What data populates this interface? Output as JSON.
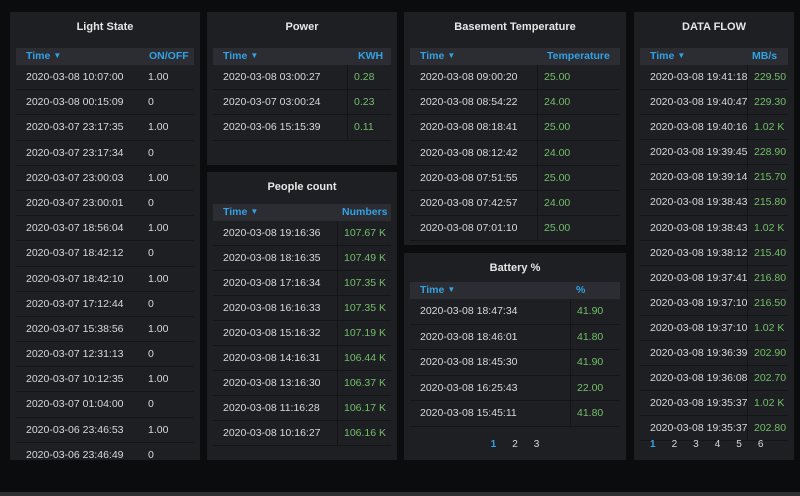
{
  "panels": {
    "light": {
      "title": "Light State",
      "col_time": "Time",
      "col_value": "ON/OFF",
      "rows": [
        {
          "time": "2020-03-08 10:07:00",
          "value": "1.00"
        },
        {
          "time": "2020-03-08 00:15:09",
          "value": "0"
        },
        {
          "time": "2020-03-07 23:17:35",
          "value": "1.00"
        },
        {
          "time": "2020-03-07 23:17:34",
          "value": "0"
        },
        {
          "time": "2020-03-07 23:00:03",
          "value": "1.00"
        },
        {
          "time": "2020-03-07 23:00:01",
          "value": "0"
        },
        {
          "time": "2020-03-07 18:56:04",
          "value": "1.00"
        },
        {
          "time": "2020-03-07 18:42:12",
          "value": "0"
        },
        {
          "time": "2020-03-07 18:42:10",
          "value": "1.00"
        },
        {
          "time": "2020-03-07 17:12:44",
          "value": "0"
        },
        {
          "time": "2020-03-07 15:38:56",
          "value": "1.00"
        },
        {
          "time": "2020-03-07 12:31:13",
          "value": "0"
        },
        {
          "time": "2020-03-07 10:12:35",
          "value": "1.00"
        },
        {
          "time": "2020-03-07 01:04:00",
          "value": "0"
        },
        {
          "time": "2020-03-06 23:46:53",
          "value": "1.00"
        },
        {
          "time": "2020-03-06 23:46:49",
          "value": "0"
        }
      ]
    },
    "power": {
      "title": "Power",
      "col_time": "Time",
      "col_value": "KWH",
      "rows": [
        {
          "time": "2020-03-08 03:00:27",
          "value": "0.28"
        },
        {
          "time": "2020-03-07 03:00:24",
          "value": "0.23"
        },
        {
          "time": "2020-03-06 15:15:39",
          "value": "0.11"
        }
      ]
    },
    "people": {
      "title": "People count",
      "col_time": "Time",
      "col_value": "Numbers",
      "rows": [
        {
          "time": "2020-03-08 19:16:36",
          "value": "107.67 K"
        },
        {
          "time": "2020-03-08 18:16:35",
          "value": "107.49 K"
        },
        {
          "time": "2020-03-08 17:16:34",
          "value": "107.35 K"
        },
        {
          "time": "2020-03-08 16:16:33",
          "value": "107.35 K"
        },
        {
          "time": "2020-03-08 15:16:32",
          "value": "107.19 K"
        },
        {
          "time": "2020-03-08 14:16:31",
          "value": "106.44 K"
        },
        {
          "time": "2020-03-08 13:16:30",
          "value": "106.37 K"
        },
        {
          "time": "2020-03-08 11:16:28",
          "value": "106.17 K"
        },
        {
          "time": "2020-03-08 10:16:27",
          "value": "106.16 K"
        }
      ]
    },
    "basement": {
      "title": "Basement Temperature",
      "col_time": "Time",
      "col_value": "Temperature",
      "rows": [
        {
          "time": "2020-03-08 09:00:20",
          "value": "25.00"
        },
        {
          "time": "2020-03-08 08:54:22",
          "value": "24.00"
        },
        {
          "time": "2020-03-08 08:18:41",
          "value": "25.00"
        },
        {
          "time": "2020-03-08 08:12:42",
          "value": "24.00"
        },
        {
          "time": "2020-03-08 07:51:55",
          "value": "25.00"
        },
        {
          "time": "2020-03-08 07:42:57",
          "value": "24.00"
        },
        {
          "time": "2020-03-08 07:01:10",
          "value": "25.00"
        }
      ]
    },
    "battery": {
      "title": "Battery %",
      "col_time": "Time",
      "col_value": "%",
      "rows": [
        {
          "time": "2020-03-08 18:47:34",
          "value": "41.90"
        },
        {
          "time": "2020-03-08 18:46:01",
          "value": "41.80"
        },
        {
          "time": "2020-03-08 18:45:30",
          "value": "41.90"
        },
        {
          "time": "2020-03-08 16:25:43",
          "value": "22.00"
        },
        {
          "time": "2020-03-08 15:45:11",
          "value": "41.80"
        }
      ],
      "pages": [
        "1",
        "2",
        "3"
      ]
    },
    "dataflow": {
      "title": "DATA FLOW",
      "col_time": "Time",
      "col_value": "MB/s",
      "rows": [
        {
          "time": "2020-03-08 19:41:18",
          "value": "229.50"
        },
        {
          "time": "2020-03-08 19:40:47",
          "value": "229.30"
        },
        {
          "time": "2020-03-08 19:40:16",
          "value": "1.02 K"
        },
        {
          "time": "2020-03-08 19:39:45",
          "value": "228.90"
        },
        {
          "time": "2020-03-08 19:39:14",
          "value": "215.70"
        },
        {
          "time": "2020-03-08 19:38:43",
          "value": "215.80"
        },
        {
          "time": "2020-03-08 19:38:43",
          "value": "1.02 K"
        },
        {
          "time": "2020-03-08 19:38:12",
          "value": "215.40"
        },
        {
          "time": "2020-03-08 19:37:41",
          "value": "216.80"
        },
        {
          "time": "2020-03-08 19:37:10",
          "value": "216.50"
        },
        {
          "time": "2020-03-08 19:37:10",
          "value": "1.02 K"
        },
        {
          "time": "2020-03-08 19:36:39",
          "value": "202.90"
        },
        {
          "time": "2020-03-08 19:36:08",
          "value": "202.70"
        },
        {
          "time": "2020-03-08 19:35:37",
          "value": "1.02 K"
        },
        {
          "time": "2020-03-08 19:35:37",
          "value": "202.80"
        }
      ],
      "pages": [
        "1",
        "2",
        "3",
        "4",
        "5",
        "6"
      ]
    }
  },
  "colors": {
    "accent": "#33a2e5",
    "value_green": "#73bf69",
    "panel_bg": "#1e1f23",
    "page_bg": "#0b0c0e"
  },
  "icons": {
    "sort": "caret-down-icon"
  }
}
